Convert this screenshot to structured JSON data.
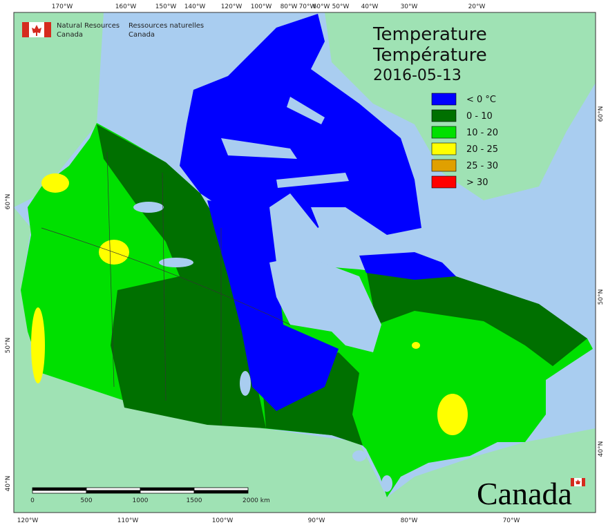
{
  "header": {
    "org_en": "Natural Resources",
    "country_en": "Canada",
    "org_fr": "Ressources naturelles",
    "country_fr": "Canada"
  },
  "title": {
    "line1": "Temperature",
    "line2": "Température",
    "date": "2016-05-13"
  },
  "legend": {
    "items": [
      {
        "label": "< 0 °C",
        "color": "#0000ff"
      },
      {
        "label": "0 - 10",
        "color": "#007000"
      },
      {
        "label": "10 - 20",
        "color": "#00e000"
      },
      {
        "label": "20 - 25",
        "color": "#ffff00"
      },
      {
        "label": "25 - 30",
        "color": "#e0a000"
      },
      {
        "label": "> 30",
        "color": "#ff0000"
      }
    ]
  },
  "graticule": {
    "top": [
      "170°W",
      "160°W",
      "150°W",
      "140°W",
      "120°W",
      "100°W",
      "80°W",
      "70°W",
      "60°W",
      "50°W",
      "40°W",
      "30°W",
      "20°W"
    ],
    "bottom": [
      "120°W",
      "110°W",
      "100°W",
      "90°W",
      "80°W",
      "70°W"
    ],
    "left": [
      "60°N",
      "50°N",
      "40°N"
    ],
    "right": [
      "60°N",
      "50°N",
      "40°N"
    ]
  },
  "scale": {
    "labels": [
      "0",
      "500",
      "1000",
      "1500",
      "2000 km"
    ]
  },
  "wordmark": "Canada"
}
